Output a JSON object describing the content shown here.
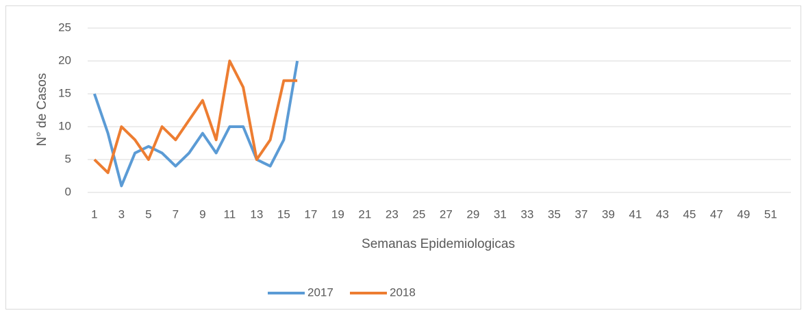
{
  "chart_data": {
    "type": "line",
    "xlabel": "Semanas Epidemiologicas",
    "ylabel": "N° de Casos",
    "categories": [
      1,
      null,
      3,
      null,
      5,
      null,
      7,
      null,
      9,
      null,
      11,
      null,
      13,
      null,
      15,
      null,
      17,
      null,
      19,
      null,
      21,
      null,
      23,
      null,
      25,
      null,
      27,
      null,
      29,
      null,
      31,
      null,
      33,
      null,
      35,
      null,
      37,
      null,
      39,
      null,
      41,
      null,
      43,
      null,
      45,
      null,
      47,
      null,
      49,
      null,
      51,
      null
    ],
    "series": [
      {
        "name": "2017",
        "color": "#5b9bd5",
        "values": [
          15,
          9,
          1,
          6,
          7,
          6,
          4,
          6,
          9,
          6,
          10,
          10,
          5,
          4,
          8,
          20,
          null,
          null,
          null,
          null,
          null,
          null,
          null,
          null,
          null,
          null,
          null,
          null,
          null,
          null,
          null,
          null,
          null,
          null,
          null,
          null,
          null,
          null,
          null,
          null,
          null,
          null,
          null,
          null,
          null,
          null,
          null,
          null,
          null,
          null,
          null,
          null
        ]
      },
      {
        "name": "2018",
        "color": "#ed7d31",
        "values": [
          5,
          3,
          10,
          8,
          5,
          10,
          8,
          11,
          14,
          8,
          20,
          16,
          5,
          8,
          17,
          17,
          null,
          null,
          null,
          null,
          null,
          null,
          null,
          null,
          null,
          null,
          null,
          null,
          null,
          null,
          null,
          null,
          null,
          null,
          null,
          null,
          null,
          null,
          null,
          null,
          null,
          null,
          null,
          null,
          null,
          null,
          null,
          null,
          null,
          null,
          null,
          null
        ]
      }
    ],
    "ylim": [
      0,
      25
    ],
    "yticks": [
      0,
      5,
      10,
      15,
      20,
      25
    ],
    "grid": true,
    "legend": "bottom"
  }
}
